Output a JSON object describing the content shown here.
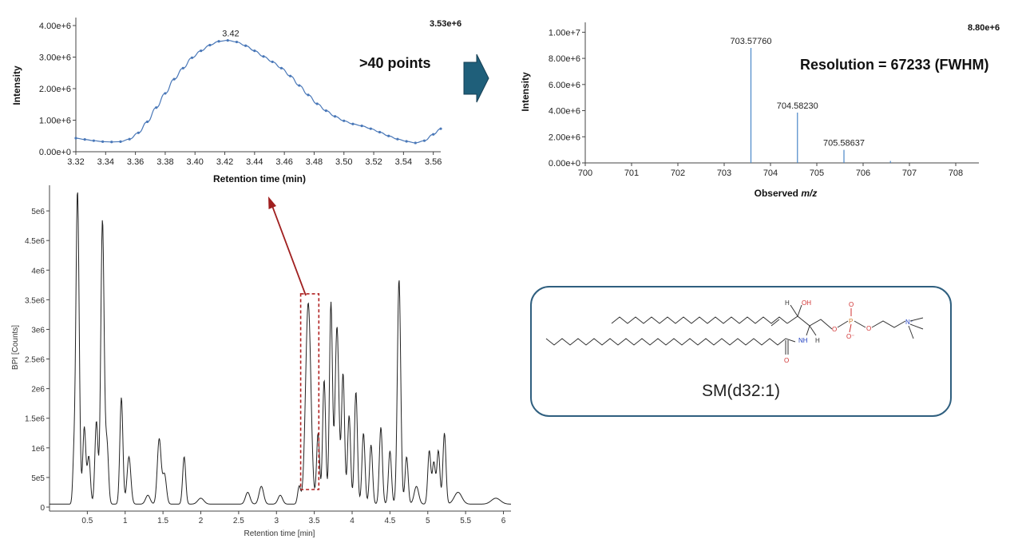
{
  "chart_data": [
    {
      "id": "xic",
      "type": "line",
      "xlabel": "Retention time (min)",
      "ylabel": "Intensity",
      "xlim": [
        3.32,
        3.565
      ],
      "ylim": [
        0,
        4000000.0
      ],
      "x_ticks": [
        3.32,
        3.34,
        3.36,
        3.38,
        3.4,
        3.42,
        3.44,
        3.46,
        3.48,
        3.5,
        3.52,
        3.54,
        3.56
      ],
      "x_tick_labels": [
        "3.32",
        "3.34",
        "3.36",
        "3.38",
        "3.40",
        "3.42",
        "3.44",
        "3.46",
        "3.48",
        "3.50",
        "3.52",
        "3.54",
        "3.56"
      ],
      "y_ticks": [
        0,
        1000000.0,
        2000000.0,
        3000000.0,
        4000000.0
      ],
      "y_tick_labels": [
        "0.00e+0",
        "1.00e+6",
        "2.00e+6",
        "3.00e+6",
        "4.00e+6"
      ],
      "max_label": "3.53e+6",
      "annotations": [
        {
          "text": "3.42",
          "x": 3.424,
          "y": 3530000.0
        }
      ],
      "big_text": ">40 points",
      "x": [
        3.32,
        3.326,
        3.332,
        3.338,
        3.344,
        3.35,
        3.356,
        3.362,
        3.368,
        3.374,
        3.38,
        3.386,
        3.392,
        3.398,
        3.404,
        3.41,
        3.416,
        3.422,
        3.428,
        3.434,
        3.44,
        3.446,
        3.452,
        3.458,
        3.464,
        3.47,
        3.476,
        3.482,
        3.488,
        3.494,
        3.5,
        3.506,
        3.512,
        3.518,
        3.524,
        3.53,
        3.536,
        3.542,
        3.548,
        3.554,
        3.56,
        3.565
      ],
      "y": [
        430000.0,
        390000.0,
        350000.0,
        320000.0,
        310000.0,
        320000.0,
        400000.0,
        600000.0,
        950000.0,
        1400000.0,
        1850000.0,
        2300000.0,
        2650000.0,
        2980000.0,
        3200000.0,
        3380000.0,
        3500000.0,
        3530000.0,
        3480000.0,
        3360000.0,
        3200000.0,
        3020000.0,
        2850000.0,
        2650000.0,
        2400000.0,
        2100000.0,
        1800000.0,
        1520000.0,
        1300000.0,
        1120000.0,
        980000.0,
        880000.0,
        820000.0,
        730000.0,
        620000.0,
        500000.0,
        400000.0,
        330000.0,
        280000.0,
        350000.0,
        550000.0,
        730000.0
      ]
    },
    {
      "id": "ms",
      "type": "bar",
      "xlabel": "Observed ",
      "xlabel_italic": "m/z",
      "ylabel": "Intensity",
      "xlim": [
        700,
        708.5
      ],
      "ylim": [
        0,
        11000000.0
      ],
      "x_ticks": [
        700,
        701,
        702,
        703,
        704,
        705,
        706,
        707,
        708
      ],
      "x_tick_labels": [
        "700",
        "701",
        "702",
        "703",
        "704",
        "705",
        "706",
        "707",
        "708"
      ],
      "y_ticks": [
        0,
        2000000.0,
        4000000.0,
        6000000.0,
        8000000.0,
        10000000.0
      ],
      "y_tick_labels": [
        "0.00e+0",
        "2.00e+6",
        "4.00e+6",
        "6.00e+6",
        "8.00e+6",
        "1.00e+7"
      ],
      "max_label": "8.80e+6",
      "big_text": "Resolution = 67233 (FWHM)",
      "peaks": [
        {
          "mz": 703.5776,
          "intensity": 8800000.0,
          "label": "703.57760"
        },
        {
          "mz": 704.5823,
          "intensity": 3850000.0,
          "label": "704.58230"
        },
        {
          "mz": 705.58637,
          "intensity": 1000000.0,
          "label": "705.58637"
        },
        {
          "mz": 706.59,
          "intensity": 150000.0,
          "label": ""
        }
      ]
    },
    {
      "id": "bpi",
      "type": "line",
      "xlabel": "Retention time [min]",
      "ylabel": "BPI [Counts]",
      "xlim": [
        0,
        6.1
      ],
      "ylim": [
        0,
        5500000.0
      ],
      "x_ticks": [
        0.5,
        1,
        1.5,
        2,
        2.5,
        3,
        3.5,
        4,
        4.5,
        5,
        5.5,
        6
      ],
      "x_tick_labels": [
        "0.5",
        "1",
        "1.5",
        "2",
        "2.5",
        "3",
        "3.5",
        "4",
        "4.5",
        "5",
        "5.5",
        "6"
      ],
      "y_ticks": [
        0,
        500000.0,
        1000000.0,
        1500000.0,
        2000000.0,
        2500000.0,
        3000000.0,
        3500000.0,
        4000000.0,
        4500000.0,
        5000000.0
      ],
      "y_tick_labels": [
        "0",
        "5e5",
        "1e6",
        "1.5e6",
        "2e6",
        "2.5e6",
        "3e6",
        "3.5e6",
        "4e6",
        "4.5e6",
        "5e6"
      ],
      "baseline": 50000.0,
      "peaks": [
        {
          "rt": 0.32,
          "h": 600000.0,
          "w": 0.015
        },
        {
          "rt": 0.37,
          "h": 5300000.0,
          "w": 0.022
        },
        {
          "rt": 0.46,
          "h": 1300000.0,
          "w": 0.02
        },
        {
          "rt": 0.52,
          "h": 800000.0,
          "w": 0.02
        },
        {
          "rt": 0.62,
          "h": 1400000.0,
          "w": 0.02
        },
        {
          "rt": 0.7,
          "h": 4800000.0,
          "w": 0.022
        },
        {
          "rt": 0.76,
          "h": 1000000.0,
          "w": 0.02
        },
        {
          "rt": 0.95,
          "h": 1800000.0,
          "w": 0.02
        },
        {
          "rt": 1.05,
          "h": 800000.0,
          "w": 0.025
        },
        {
          "rt": 1.3,
          "h": 150000.0,
          "w": 0.03
        },
        {
          "rt": 1.45,
          "h": 1100000.0,
          "w": 0.025
        },
        {
          "rt": 1.52,
          "h": 500000.0,
          "w": 0.025
        },
        {
          "rt": 1.78,
          "h": 800000.0,
          "w": 0.02
        },
        {
          "rt": 2.0,
          "h": 100000.0,
          "w": 0.04
        },
        {
          "rt": 2.62,
          "h": 200000.0,
          "w": 0.03
        },
        {
          "rt": 2.8,
          "h": 300000.0,
          "w": 0.03
        },
        {
          "rt": 3.05,
          "h": 150000.0,
          "w": 0.03
        },
        {
          "rt": 3.3,
          "h": 300000.0,
          "w": 0.02
        },
        {
          "rt": 3.42,
          "h": 3400000.0,
          "w": 0.035
        },
        {
          "rt": 3.55,
          "h": 1200000.0,
          "w": 0.02
        },
        {
          "rt": 3.63,
          "h": 2100000.0,
          "w": 0.02
        },
        {
          "rt": 3.72,
          "h": 3400000.0,
          "w": 0.02
        },
        {
          "rt": 3.8,
          "h": 3000000.0,
          "w": 0.025
        },
        {
          "rt": 3.88,
          "h": 2200000.0,
          "w": 0.02
        },
        {
          "rt": 3.96,
          "h": 1500000.0,
          "w": 0.02
        },
        {
          "rt": 4.05,
          "h": 1900000.0,
          "w": 0.02
        },
        {
          "rt": 4.15,
          "h": 1200000.0,
          "w": 0.02
        },
        {
          "rt": 4.25,
          "h": 1000000.0,
          "w": 0.02
        },
        {
          "rt": 4.38,
          "h": 1300000.0,
          "w": 0.02
        },
        {
          "rt": 4.5,
          "h": 900000.0,
          "w": 0.02
        },
        {
          "rt": 4.62,
          "h": 3800000.0,
          "w": 0.022
        },
        {
          "rt": 4.72,
          "h": 800000.0,
          "w": 0.02
        },
        {
          "rt": 4.85,
          "h": 300000.0,
          "w": 0.03
        },
        {
          "rt": 5.02,
          "h": 900000.0,
          "w": 0.02
        },
        {
          "rt": 5.08,
          "h": 700000.0,
          "w": 0.02
        },
        {
          "rt": 5.14,
          "h": 900000.0,
          "w": 0.02
        },
        {
          "rt": 5.22,
          "h": 1200000.0,
          "w": 0.02
        },
        {
          "rt": 5.4,
          "h": 200000.0,
          "w": 0.05
        },
        {
          "rt": 5.9,
          "h": 100000.0,
          "w": 0.06
        }
      ],
      "highlight_window": {
        "rt_start": 3.32,
        "rt_end": 3.56,
        "intensity_top": 3600000.0
      }
    }
  ],
  "structure": {
    "name": "SM(d32:1)",
    "atom_labels": {
      "oh": "OH",
      "h": "H",
      "nh": "NH",
      "o": "O",
      "p": "P",
      "o_minus": "O⁻",
      "n_plus": "N⁺"
    }
  },
  "colors": {
    "xic_line": "#4a78b8",
    "ms_bar": "#4a88c8",
    "bpi_line": "#222222",
    "highlight_box": "#b02020",
    "arrow_red": "#a02020",
    "big_arrow": "#1f5f7a",
    "struct_border": "#2f5f7f",
    "oxygen": "#d03030",
    "nitrogen": "#2040c0",
    "phosphorus": "#d08030"
  }
}
